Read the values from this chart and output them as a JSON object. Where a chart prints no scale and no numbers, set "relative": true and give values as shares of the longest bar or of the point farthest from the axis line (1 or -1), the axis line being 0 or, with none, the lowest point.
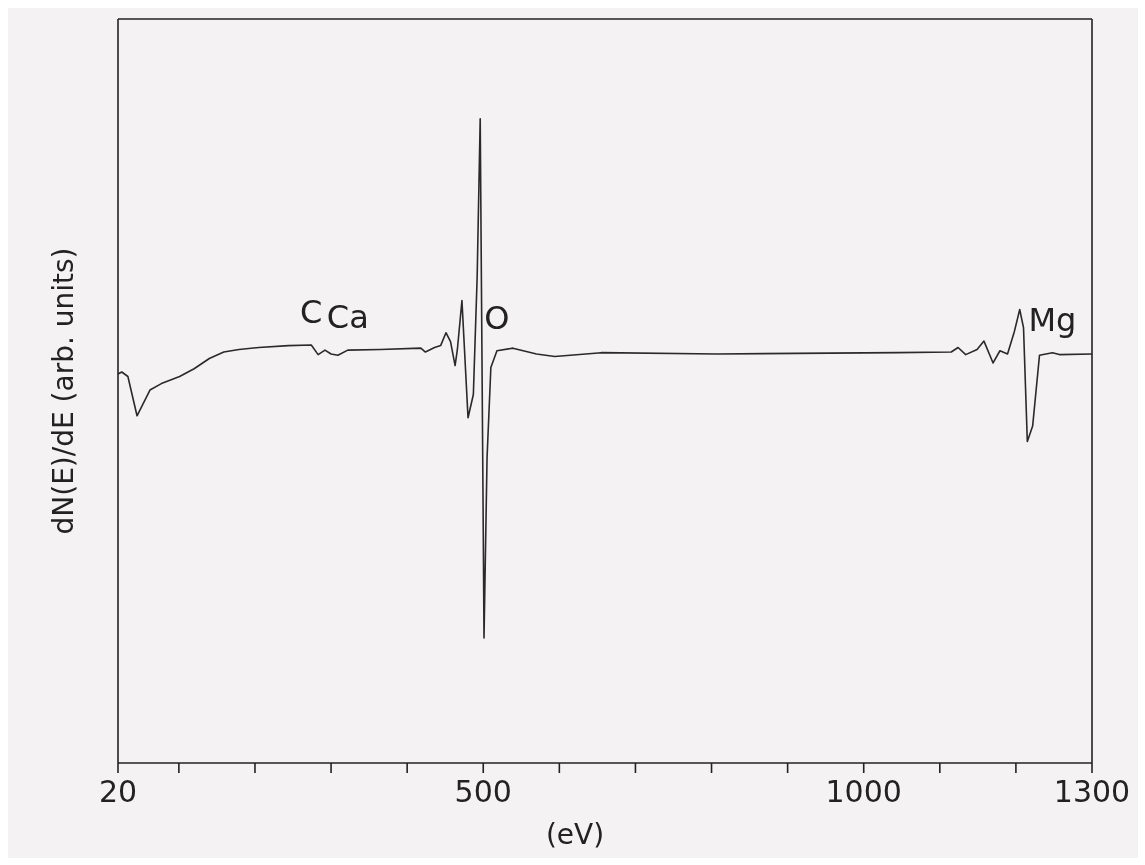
{
  "chart_data": {
    "type": "line",
    "relative": true,
    "xlabel": "(eV)",
    "ylabel": "dN(E)/dE (arb. units)",
    "x": [
      20,
      25,
      33,
      45,
      62,
      77,
      101,
      120,
      140,
      159,
      179,
      205,
      244,
      274,
      283,
      292,
      300,
      309,
      322,
      365,
      418,
      424,
      436,
      444,
      451,
      457,
      463,
      466,
      472,
      480,
      487,
      492,
      496,
      500,
      501,
      505,
      510,
      518,
      539,
      570,
      594,
      655,
      807,
      1045,
      1115,
      1124,
      1134,
      1149,
      1158,
      1170,
      1179,
      1189,
      1198,
      1205,
      1210,
      1215,
      1222,
      1231,
      1248,
      1257,
      1300
    ],
    "series": [
      {
        "color": "#2a2a2a",
        "values": [
          0.604,
          0.607,
          0.6,
          0.539,
          0.579,
          0.589,
          0.6,
          0.612,
          0.628,
          0.638,
          0.642,
          0.645,
          0.648,
          0.649,
          0.634,
          0.641,
          0.635,
          0.633,
          0.641,
          0.642,
          0.644,
          0.638,
          0.645,
          0.648,
          0.668,
          0.654,
          0.617,
          0.642,
          0.718,
          0.536,
          0.572,
          0.755,
          1,
          0.362,
          0.194,
          0.474,
          0.614,
          0.64,
          0.644,
          0.635,
          0.631,
          0.637,
          0.635,
          0.637,
          0.638,
          0.645,
          0.634,
          0.642,
          0.655,
          0.621,
          0.64,
          0.635,
          0.67,
          0.704,
          0.676,
          0.499,
          0.523,
          0.633,
          0.637,
          0.634,
          0.635
        ]
      }
    ],
    "xlim": [
      20,
      1300
    ],
    "xticks": [
      20,
      {
        "value": 100,
        "label": null
      },
      {
        "value": 200,
        "label": null
      },
      {
        "value": 300,
        "label": null
      },
      {
        "value": 400,
        "label": null
      },
      500,
      {
        "value": 600,
        "label": null
      },
      {
        "value": 700,
        "label": null
      },
      {
        "value": 800,
        "label": null
      },
      {
        "value": 900,
        "label": null
      },
      1000,
      {
        "value": 1100,
        "label": null
      },
      {
        "value": 1200,
        "label": null
      },
      1300
    ],
    "annotations": [
      {
        "text": "C",
        "x": 274,
        "y": 0.649
      },
      {
        "text": "Ca",
        "x": 322,
        "y": 0.641
      },
      {
        "text": "O",
        "x": 518,
        "y": 0.64
      },
      {
        "text": "Mg",
        "x": 1248,
        "y": 0.637
      }
    ],
    "marker": "none",
    "line_style": "solid"
  }
}
